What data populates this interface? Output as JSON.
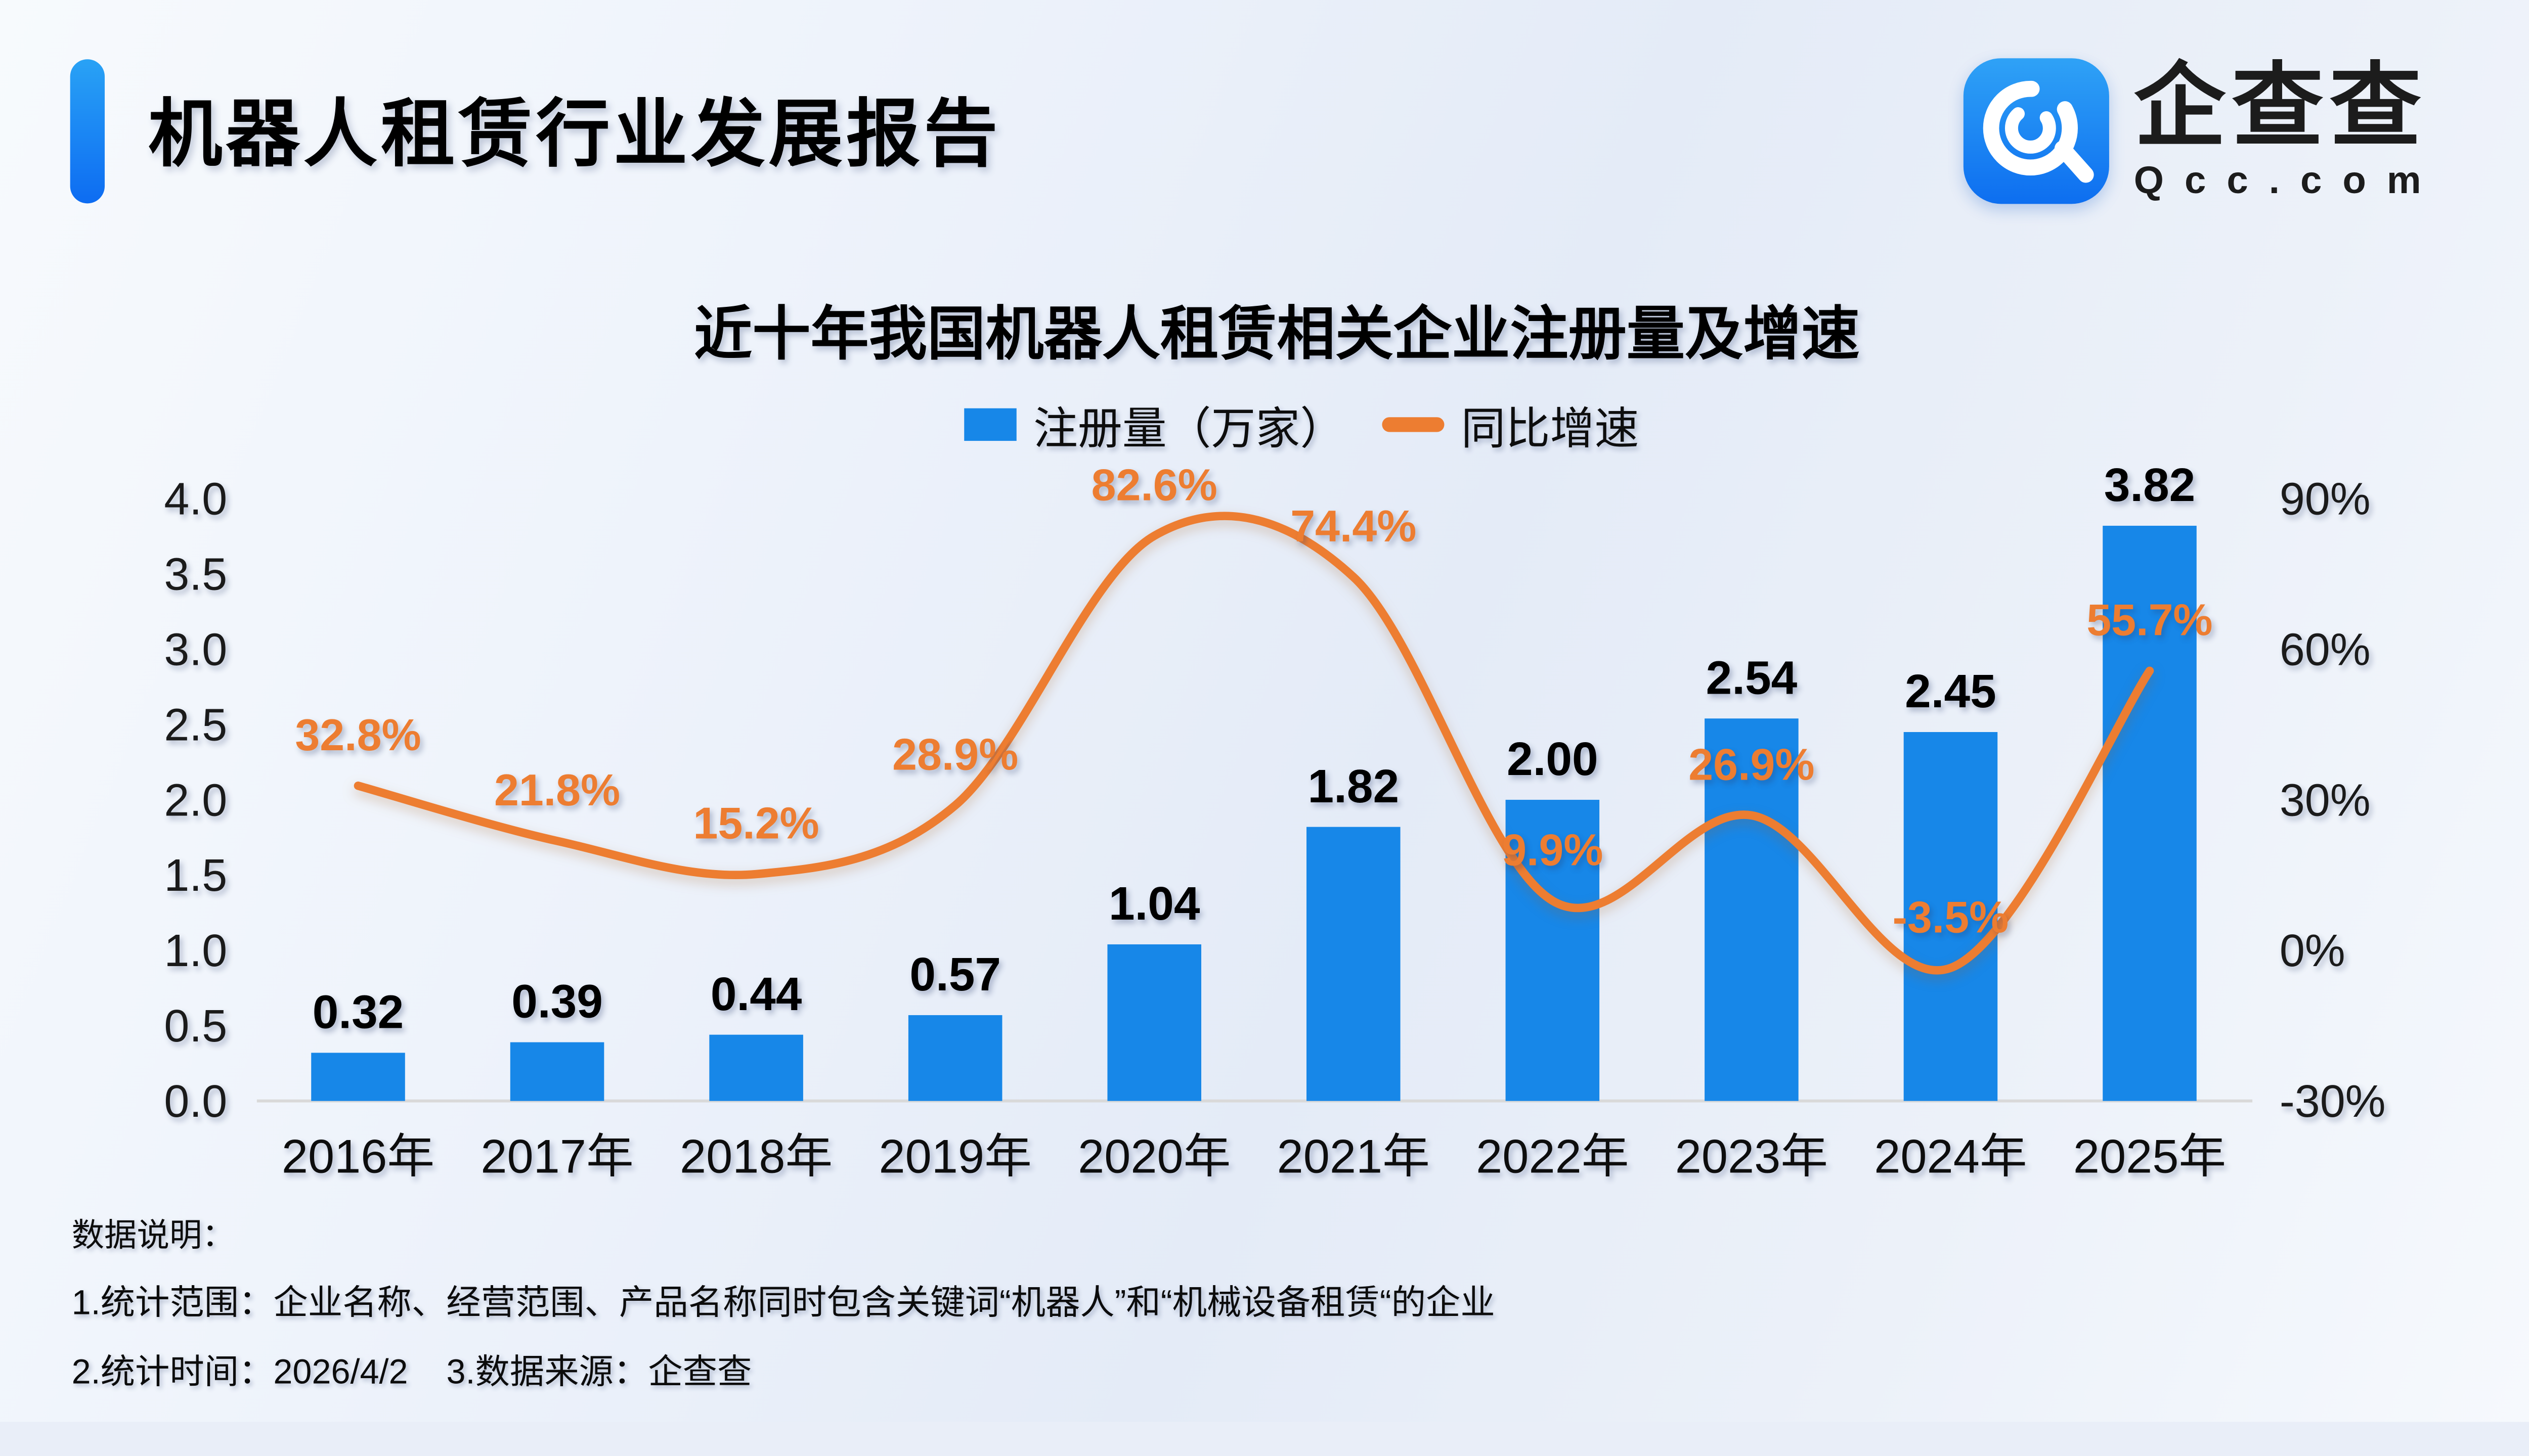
{
  "header": {
    "title": "机器人租赁行业发展报告"
  },
  "logo": {
    "brand": "企查查",
    "domain": "Qcc.com"
  },
  "colors": {
    "accent_blue": "#1787E8",
    "line_orange": "#ED7D31",
    "axis_line": "#D9D9D9",
    "background": "#EDF2FA"
  },
  "chart": {
    "title": "近十年我国机器人租赁相关企业注册量及增速",
    "legend": [
      {
        "label": "注册量（万家）",
        "type": "bar",
        "color": "#1787E8"
      },
      {
        "label": "同比增速",
        "type": "line",
        "color": "#ED7D31"
      }
    ]
  },
  "chart_data": {
    "type": "bar",
    "subtype": "bar+line combo",
    "title": "近十年我国机器人租赁相关企业注册量及增速",
    "categories": [
      "2016年",
      "2017年",
      "2018年",
      "2019年",
      "2020年",
      "2021年",
      "2022年",
      "2023年",
      "2024年",
      "2025年"
    ],
    "series": [
      {
        "name": "注册量（万家）",
        "type": "bar",
        "axis": "left",
        "color": "#1787E8",
        "values": [
          0.32,
          0.39,
          0.44,
          0.57,
          1.04,
          1.82,
          2.0,
          2.54,
          2.45,
          3.82
        ],
        "labels": [
          "0.32",
          "0.39",
          "0.44",
          "0.57",
          "1.04",
          "1.82",
          "2.00",
          "2.54",
          "2.45",
          "3.82"
        ]
      },
      {
        "name": "同比增速",
        "type": "line",
        "axis": "right",
        "color": "#ED7D31",
        "values": [
          32.8,
          21.8,
          15.2,
          28.9,
          82.6,
          74.4,
          9.9,
          26.9,
          -3.5,
          55.7
        ],
        "labels": [
          "32.8%",
          "21.8%",
          "15.2%",
          "28.9%",
          "82.6%",
          "74.4%",
          "9.9%",
          "26.9%",
          "-3.5%",
          "55.7%"
        ]
      }
    ],
    "left_axis": {
      "min": 0,
      "max": 4,
      "ticks": [
        0,
        0.5,
        1,
        1.5,
        2,
        2.5,
        3,
        3.5,
        4
      ],
      "tick_labels": [
        "0.0",
        "0.5",
        "1.0",
        "1.5",
        "2.0",
        "2.5",
        "3.0",
        "3.5",
        "4.0"
      ]
    },
    "right_axis": {
      "min": -30,
      "max": 90,
      "ticks": [
        -30,
        0,
        30,
        60,
        90
      ],
      "tick_labels": [
        "-30%",
        "0%",
        "30%",
        "60%",
        "90%"
      ]
    },
    "grid": false,
    "legend_position": "top-center"
  },
  "footer": {
    "heading": "数据说明：",
    "notes": [
      "1.统计范围：企业名称、经营范围、产品名称同时包含关键词“机器人”和“机械设备租赁“的企业",
      "2.统计时间：2026/4/2    3.数据来源：企查查"
    ]
  }
}
